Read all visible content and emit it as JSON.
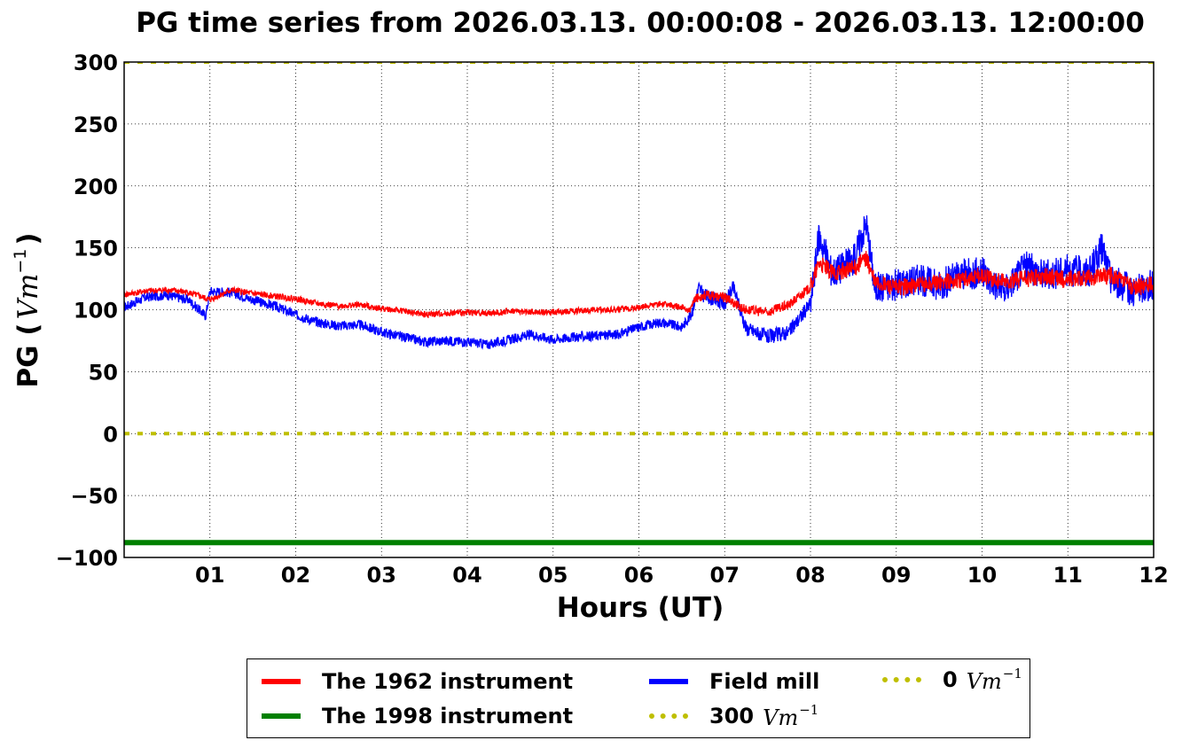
{
  "chart_data": {
    "type": "line",
    "title": "PG time series from 2026.03.13. 00:00:08 - 2026.03.13. 12:00:00",
    "xlabel": "Hours (UT)",
    "ylabel": "PG (",
    "ylabel_unit": "Vm",
    "ylabel_exp": "−1",
    "ylabel_close": ")",
    "xlim": [
      0,
      12
    ],
    "ylim": [
      -100,
      300
    ],
    "grid": true,
    "x_ticks": [
      1,
      2,
      3,
      4,
      5,
      6,
      7,
      8,
      9,
      10,
      11,
      12
    ],
    "x_tick_labels": [
      "01",
      "02",
      "03",
      "04",
      "05",
      "06",
      "07",
      "08",
      "09",
      "10",
      "11",
      "12"
    ],
    "y_ticks": [
      -100,
      -50,
      0,
      50,
      100,
      150,
      200,
      250,
      300
    ],
    "y_tick_labels": [
      "−100",
      "−50",
      "0",
      "50",
      "100",
      "150",
      "200",
      "250",
      "300"
    ],
    "series": [
      {
        "name": "The 1962 instrument",
        "color": "#ff0000",
        "style": "solid",
        "x": [
          0,
          0.25,
          0.5,
          0.75,
          1.0,
          1.25,
          1.5,
          1.75,
          2.0,
          2.25,
          2.5,
          2.75,
          3.0,
          3.25,
          3.5,
          3.75,
          4.0,
          4.25,
          4.5,
          4.75,
          5.0,
          5.25,
          5.5,
          5.75,
          6.0,
          6.25,
          6.5,
          6.6,
          6.65,
          6.75,
          7.0,
          7.25,
          7.5,
          7.75,
          8.0,
          8.1,
          8.25,
          8.5,
          8.65,
          8.75,
          9.0,
          9.25,
          9.5,
          9.75,
          10.0,
          10.25,
          10.5,
          10.75,
          11.0,
          11.25,
          11.5,
          11.75,
          12.0
        ],
        "y": [
          112,
          115,
          116,
          114,
          108,
          116,
          113,
          111,
          109,
          105,
          103,
          104,
          101,
          99,
          96,
          97,
          98,
          97,
          99,
          98,
          98,
          99,
          100,
          100,
          102,
          105,
          102,
          99,
          108,
          112,
          110,
          100,
          98,
          104,
          118,
          138,
          130,
          133,
          142,
          122,
          118,
          120,
          122,
          124,
          128,
          122,
          125,
          127,
          124,
          126,
          128,
          118,
          120
        ]
      },
      {
        "name": "The 1998 instrument",
        "color": "#008000",
        "style": "solid",
        "x": [
          0,
          12
        ],
        "y": [
          -88,
          -88
        ]
      },
      {
        "name": "Field mill",
        "color": "#0000ff",
        "style": "solid",
        "x": [
          0,
          0.25,
          0.5,
          0.75,
          0.95,
          1.0,
          1.25,
          1.5,
          1.75,
          2.0,
          2.25,
          2.5,
          2.75,
          3.0,
          3.25,
          3.5,
          3.75,
          4.0,
          4.25,
          4.5,
          4.75,
          5.0,
          5.25,
          5.5,
          5.75,
          6.0,
          6.25,
          6.5,
          6.6,
          6.7,
          6.75,
          7.0,
          7.1,
          7.25,
          7.5,
          7.75,
          8.0,
          8.1,
          8.25,
          8.5,
          8.65,
          8.75,
          9.0,
          9.25,
          9.5,
          9.75,
          10.0,
          10.25,
          10.5,
          10.75,
          11.0,
          11.25,
          11.4,
          11.5,
          11.75,
          12.0
        ],
        "y": [
          102,
          110,
          112,
          108,
          95,
          115,
          114,
          108,
          103,
          96,
          90,
          87,
          88,
          82,
          78,
          74,
          75,
          74,
          72,
          76,
          80,
          76,
          78,
          79,
          80,
          86,
          90,
          86,
          95,
          118,
          112,
          105,
          118,
          85,
          78,
          82,
          105,
          160,
          130,
          140,
          170,
          118,
          120,
          125,
          120,
          128,
          130,
          115,
          135,
          128,
          132,
          130,
          150,
          125,
          115,
          120
        ]
      },
      {
        "name": "300",
        "name_unit": "Vm",
        "name_exp": "−1",
        "color": "#bfbf00",
        "style": "dotted",
        "x": [
          0,
          12
        ],
        "y": [
          300,
          300
        ]
      },
      {
        "name": "0",
        "name_unit": "Vm",
        "name_exp": "−1",
        "color": "#bfbf00",
        "style": "dotted",
        "x": [
          0,
          12
        ],
        "y": [
          0,
          0
        ]
      }
    ],
    "legend_position": "bottom-center"
  }
}
